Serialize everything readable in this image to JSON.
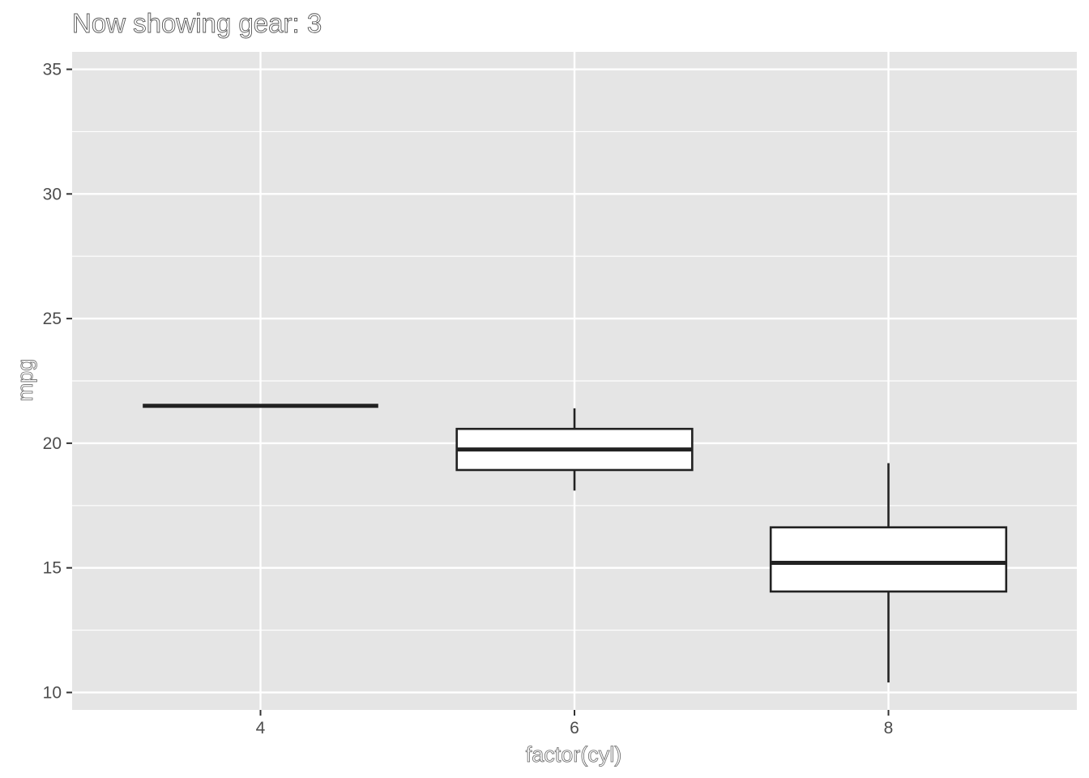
{
  "chart_data": {
    "type": "boxplot",
    "title": "Now showing gear: 3",
    "xlabel": "factor(cyl)",
    "ylabel": "mpg",
    "categories": [
      "4",
      "6",
      "8"
    ],
    "x_ticks": [
      "4",
      "6",
      "8"
    ],
    "x_numeric": [
      4,
      6,
      8
    ],
    "xlim": [
      2.8,
      9.2
    ],
    "ylim": [
      9.3,
      35.7
    ],
    "y_ticks": [
      10,
      15,
      20,
      25,
      30,
      35
    ],
    "y_tick_labels": [
      "10",
      "15",
      "20",
      "25",
      "30",
      "35"
    ],
    "boxes": [
      {
        "category": "4",
        "x": 4,
        "min": 21.5,
        "q1": 21.5,
        "median": 21.5,
        "q3": 21.5,
        "max": 21.5
      },
      {
        "category": "6",
        "x": 6,
        "min": 18.1,
        "q1": 18.925,
        "median": 19.75,
        "q3": 20.575,
        "max": 21.4
      },
      {
        "category": "8",
        "x": 8,
        "min": 10.4,
        "q1": 14.05,
        "median": 15.2,
        "q3": 16.625,
        "max": 19.2
      }
    ],
    "grid": true,
    "panel_background": "#e5e5e5",
    "grid_color": "#ffffff",
    "box_fill": "#ffffff",
    "box_stroke": "#222222"
  }
}
